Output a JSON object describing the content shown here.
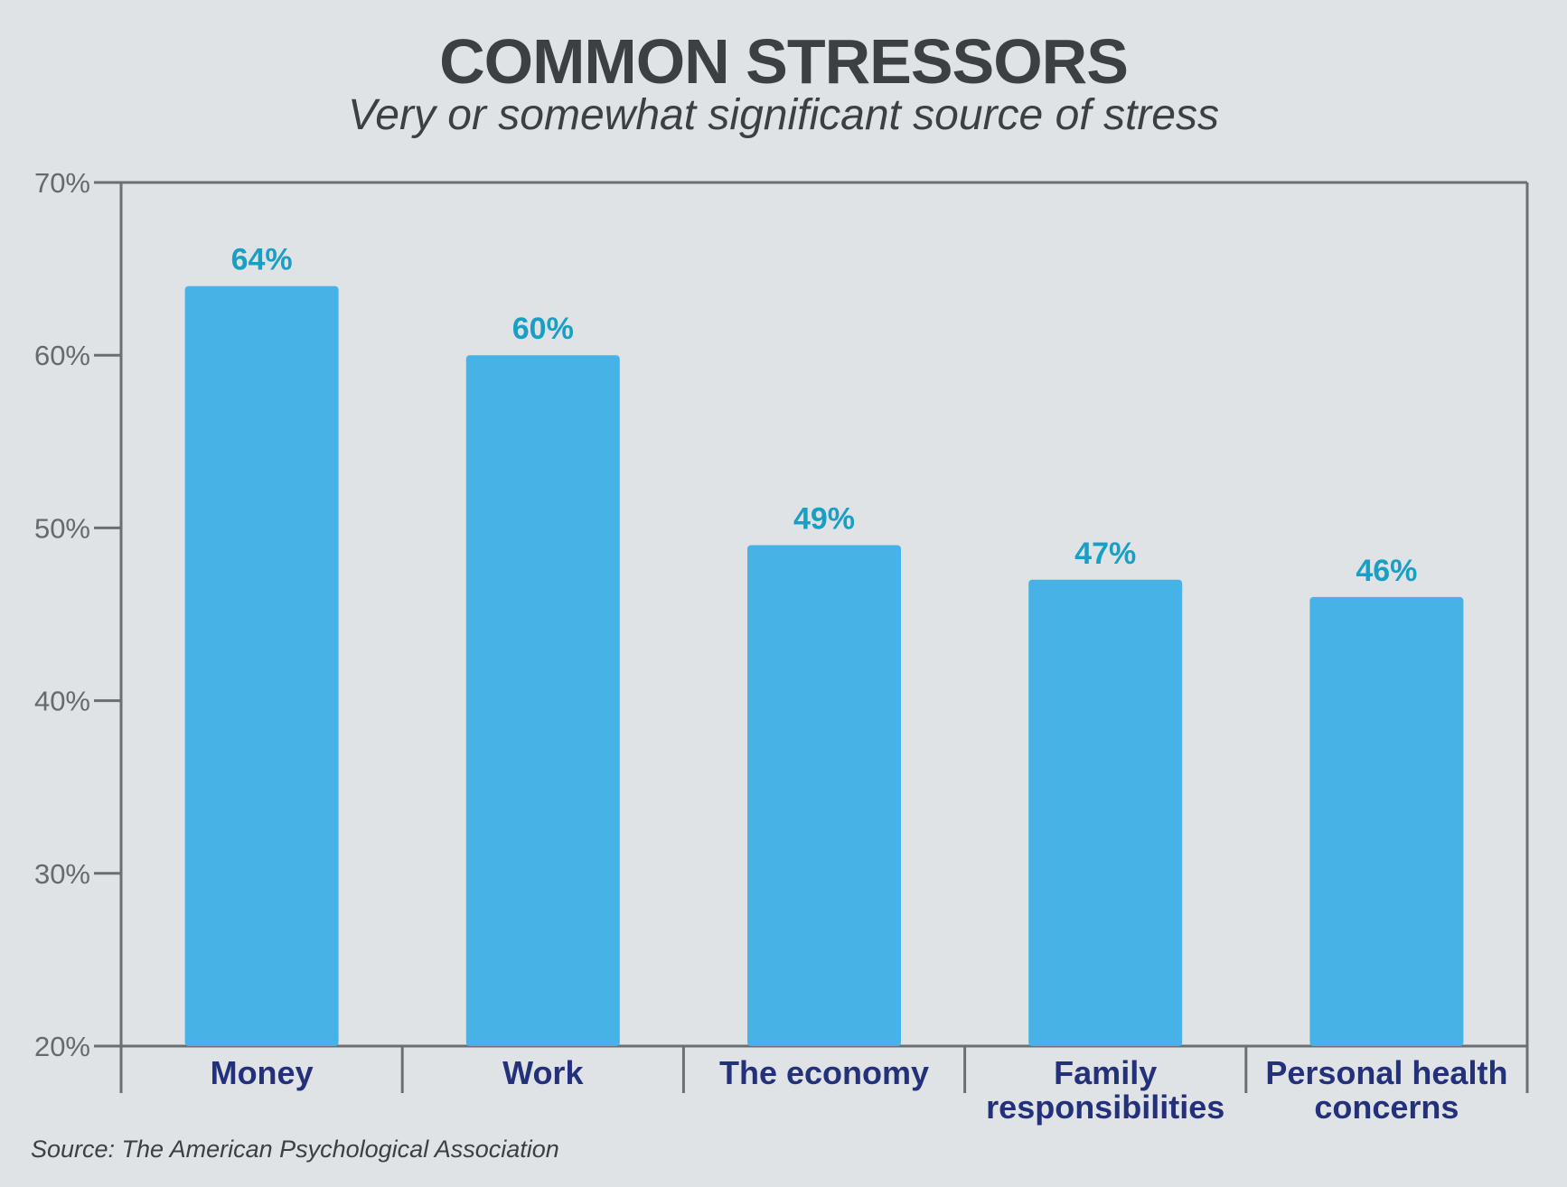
{
  "chart_data": {
    "type": "bar",
    "title": "COMMON STRESSORS",
    "subtitle": "Very or somewhat significant source of stress",
    "categories": [
      "Money",
      "Work",
      "The economy",
      "Family responsibilities",
      "Personal health concerns"
    ],
    "category_lines": [
      [
        "Money"
      ],
      [
        "Work"
      ],
      [
        "The economy"
      ],
      [
        "Family",
        "responsibilities"
      ],
      [
        "Personal health",
        "concerns"
      ]
    ],
    "values": [
      64,
      60,
      49,
      47,
      46
    ],
    "data_labels": [
      "64%",
      "60%",
      "49%",
      "47%",
      "46%"
    ],
    "ylim": [
      20,
      70
    ],
    "yticks": [
      20,
      30,
      40,
      50,
      60,
      70
    ],
    "ytick_labels": [
      "20%",
      "30%",
      "40%",
      "50%",
      "60%",
      "70%"
    ],
    "grid": false,
    "legend": "none",
    "xlabel": "",
    "ylabel": "",
    "bar_color": "#47b2e6",
    "data_label_color": "#1a9fc4",
    "category_label_color": "#23307a",
    "axis_color": "#6b6f73",
    "source": "Source: The American Psychological Association"
  }
}
